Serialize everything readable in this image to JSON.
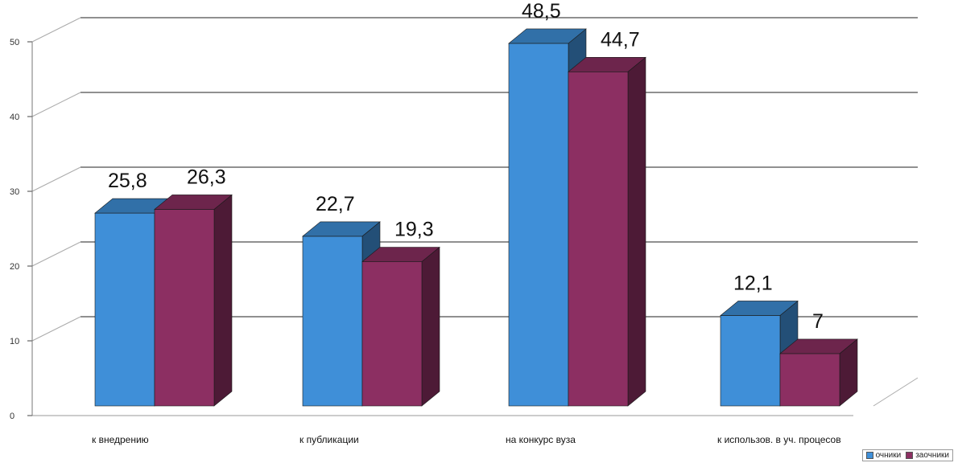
{
  "chart_data": {
    "type": "bar",
    "categories": [
      "к внедрению",
      "к публикации",
      "на конкурс вуза",
      "к использов. в уч. процесов"
    ],
    "series": [
      {
        "name": "очники",
        "values": [
          25.8,
          22.7,
          48.5,
          12.1
        ],
        "labels": [
          "25,8",
          "22,7",
          "48,5",
          "12,1"
        ],
        "color": "#3f8fd8"
      },
      {
        "name": "заочники",
        "values": [
          26.3,
          19.3,
          44.7,
          7
        ],
        "labels": [
          "26,3",
          "19,3",
          "44,7",
          "7"
        ],
        "color": "#8c2f62"
      }
    ],
    "yticks": [
      "0",
      "10",
      "20",
      "30",
      "40",
      "50"
    ],
    "ylim": [
      0,
      50
    ],
    "grid": true,
    "legend": "bottom-right",
    "style": "3d-column"
  }
}
